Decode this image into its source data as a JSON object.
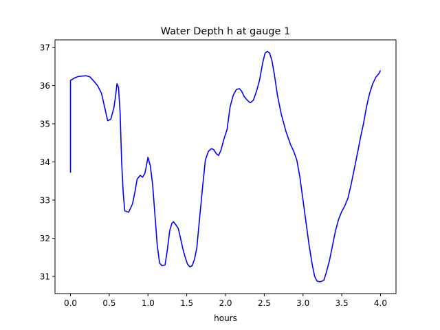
{
  "chart_data": {
    "type": "line",
    "title": "Water Depth h at gauge 1",
    "xlabel": "hours",
    "ylabel": "",
    "xlim": [
      -0.2,
      4.2
    ],
    "ylim": [
      30.55,
      37.2
    ],
    "grid": false,
    "x_ticks": [
      "0.0",
      "0.5",
      "1.0",
      "1.5",
      "2.0",
      "2.5",
      "3.0",
      "3.5",
      "4.0"
    ],
    "y_ticks": [
      "31",
      "32",
      "33",
      "34",
      "35",
      "36",
      "37"
    ],
    "series": [
      {
        "name": "",
        "color": "#0000ff",
        "x": [
          0.0,
          0.0,
          0.02,
          0.05,
          0.1,
          0.15,
          0.2,
          0.25,
          0.3,
          0.35,
          0.4,
          0.45,
          0.48,
          0.52,
          0.56,
          0.58,
          0.6,
          0.62,
          0.64,
          0.66,
          0.68,
          0.7,
          0.75,
          0.8,
          0.83,
          0.86,
          0.9,
          0.93,
          0.96,
          1.0,
          1.03,
          1.06,
          1.09,
          1.12,
          1.15,
          1.18,
          1.22,
          1.25,
          1.28,
          1.31,
          1.33,
          1.36,
          1.39,
          1.42,
          1.45,
          1.48,
          1.51,
          1.54,
          1.57,
          1.6,
          1.63,
          1.66,
          1.7,
          1.74,
          1.78,
          1.82,
          1.85,
          1.88,
          1.91,
          1.94,
          1.98,
          2.02,
          2.06,
          2.1,
          2.14,
          2.18,
          2.21,
          2.24,
          2.28,
          2.32,
          2.36,
          2.4,
          2.44,
          2.48,
          2.51,
          2.54,
          2.57,
          2.6,
          2.63,
          2.67,
          2.72,
          2.78,
          2.84,
          2.88,
          2.92,
          2.96,
          3.0,
          3.04,
          3.08,
          3.12,
          3.15,
          3.18,
          3.21,
          3.24,
          3.27,
          3.3,
          3.34,
          3.38,
          3.42,
          3.46,
          3.5,
          3.54,
          3.58,
          3.62,
          3.66,
          3.7,
          3.74,
          3.78,
          3.82,
          3.86,
          3.9,
          3.94,
          3.98,
          4.0
        ],
        "y": [
          33.72,
          36.14,
          36.16,
          36.2,
          36.24,
          36.25,
          36.26,
          36.23,
          36.12,
          36.0,
          35.8,
          35.35,
          35.08,
          35.12,
          35.42,
          35.7,
          36.05,
          35.95,
          35.3,
          34.0,
          33.2,
          32.72,
          32.68,
          32.9,
          33.2,
          33.55,
          33.65,
          33.6,
          33.7,
          34.12,
          33.9,
          33.4,
          32.6,
          31.8,
          31.35,
          31.28,
          31.3,
          31.7,
          32.2,
          32.4,
          32.43,
          32.35,
          32.26,
          32.0,
          31.72,
          31.5,
          31.32,
          31.25,
          31.28,
          31.45,
          31.75,
          32.4,
          33.25,
          34.05,
          34.28,
          34.35,
          34.32,
          34.22,
          34.17,
          34.3,
          34.6,
          34.85,
          35.45,
          35.75,
          35.9,
          35.92,
          35.85,
          35.72,
          35.62,
          35.55,
          35.62,
          35.85,
          36.15,
          36.6,
          36.85,
          36.9,
          36.85,
          36.65,
          36.3,
          35.75,
          35.25,
          34.8,
          34.45,
          34.28,
          34.05,
          33.6,
          33.0,
          32.4,
          31.8,
          31.3,
          31.0,
          30.88,
          30.86,
          30.87,
          30.9,
          31.1,
          31.4,
          31.8,
          32.2,
          32.5,
          32.7,
          32.85,
          33.05,
          33.4,
          33.8,
          34.2,
          34.62,
          35.0,
          35.45,
          35.8,
          36.05,
          36.22,
          36.32,
          36.4
        ]
      }
    ]
  }
}
